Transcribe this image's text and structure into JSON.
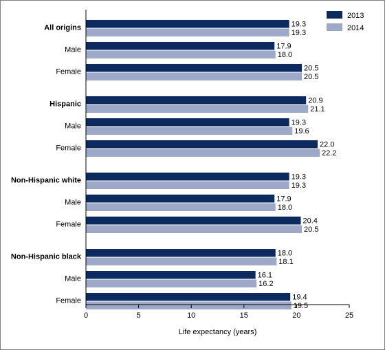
{
  "chart_data": {
    "type": "bar",
    "orientation": "horizontal",
    "title": "",
    "xlabel": "Life expectancy (years)",
    "ylabel": "",
    "xlim": [
      0,
      25
    ],
    "xticks": [
      "0",
      "5",
      "10",
      "15",
      "20",
      "25"
    ],
    "grid": false,
    "legend_position": "top-right",
    "categories": [
      {
        "label": "All origins",
        "bold": true
      },
      {
        "label": "Male",
        "bold": false
      },
      {
        "label": "Female",
        "bold": false
      },
      {
        "label": "Hispanic",
        "bold": true
      },
      {
        "label": "Male",
        "bold": false
      },
      {
        "label": "Female",
        "bold": false
      },
      {
        "label": "Non-Hispanic white",
        "bold": true
      },
      {
        "label": "Male",
        "bold": false
      },
      {
        "label": "Female",
        "bold": false
      },
      {
        "label": "Non-Hispanic black",
        "bold": true
      },
      {
        "label": "Male",
        "bold": false
      },
      {
        "label": "Female",
        "bold": false
      }
    ],
    "series": [
      {
        "name": "2013",
        "color": "#0d2a5e",
        "values": [
          19.3,
          17.9,
          20.5,
          20.9,
          19.3,
          22.0,
          19.3,
          17.9,
          20.4,
          18.0,
          16.1,
          19.4
        ],
        "labels": [
          "19.3",
          "17.9",
          "20.5",
          "20.9",
          "19.3",
          "22.0",
          "19.3",
          "17.9",
          "20.4",
          "18.0",
          "16.1",
          "19.4"
        ]
      },
      {
        "name": "2014",
        "color": "#9ea9c9",
        "values": [
          19.3,
          18.0,
          20.5,
          21.1,
          19.6,
          22.2,
          19.3,
          18.0,
          20.5,
          18.1,
          16.2,
          19.5
        ],
        "labels": [
          "19.3",
          "18.0",
          "20.5",
          "21.1",
          "19.6",
          "22.2",
          "19.3",
          "18.0",
          "20.5",
          "18.1",
          "16.2",
          "19.5"
        ]
      }
    ]
  }
}
